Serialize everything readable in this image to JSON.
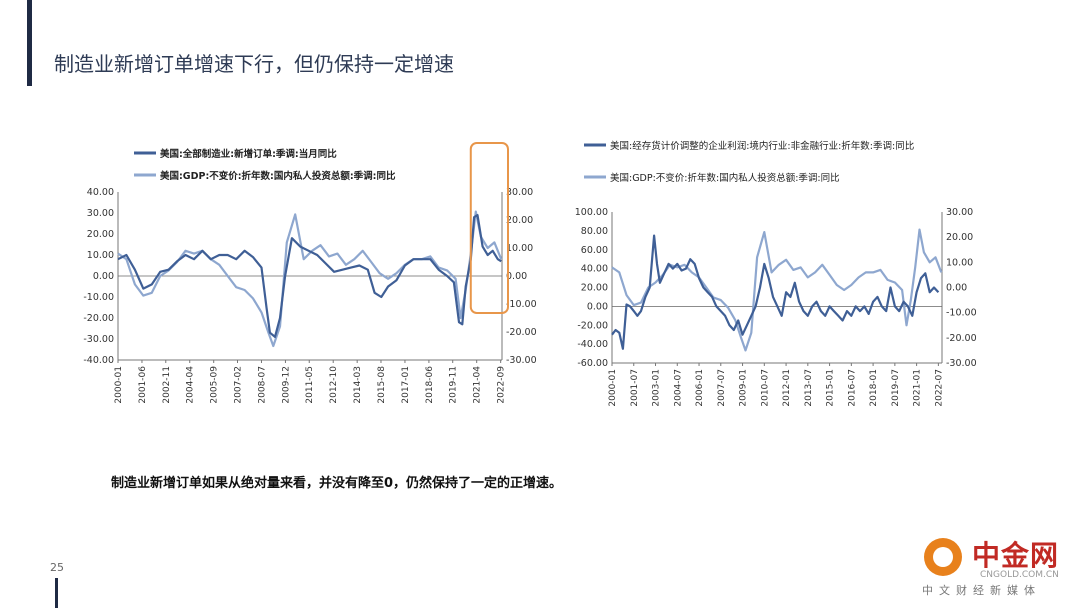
{
  "page": {
    "title": "制造业新增订单增速下行，但仍保持一定增速",
    "caption": "制造业新增订单如果从绝对量来看，并没有降至0，仍然保持了一定的正增速。",
    "page_number": "25"
  },
  "logo": {
    "name": "中金网",
    "url": "CNGOLD.COM.CN",
    "subtitle": "中文财经新媒体"
  },
  "chart_data": [
    {
      "type": "line",
      "series": [
        {
          "name": "美国:全部制造业:新增订单:季调:当月同比",
          "axis": "left",
          "color": "#3f5f96",
          "x": [
            2000.0,
            2000.5,
            2001.0,
            2001.5,
            2002.0,
            2002.5,
            2003.0,
            2003.5,
            2004.0,
            2004.5,
            2005.0,
            2005.5,
            2006.0,
            2006.5,
            2007.0,
            2007.5,
            2008.0,
            2008.5,
            2008.8,
            2009.0,
            2009.3,
            2009.6,
            2009.9,
            2010.3,
            2010.8,
            2011.3,
            2011.8,
            2012.3,
            2012.8,
            2013.3,
            2013.8,
            2014.3,
            2014.8,
            2015.2,
            2015.6,
            2016.0,
            2016.5,
            2017.0,
            2017.5,
            2018.0,
            2018.5,
            2019.0,
            2019.5,
            2019.9,
            2020.2,
            2020.4,
            2020.6,
            2020.9,
            2021.1,
            2021.3,
            2021.6,
            2021.9,
            2022.2,
            2022.5,
            2022.7
          ],
          "y": [
            8,
            10,
            3,
            -6,
            -4,
            2,
            3,
            7,
            10,
            8,
            12,
            8,
            10,
            10,
            8,
            12,
            9,
            4,
            -15,
            -27,
            -29,
            -20,
            0,
            18,
            14,
            12,
            10,
            6,
            2,
            3,
            4,
            5,
            3,
            -8,
            -10,
            -5,
            -2,
            5,
            8,
            8,
            8,
            3,
            0,
            -3,
            -22,
            -23,
            -5,
            8,
            28,
            29,
            14,
            10,
            12,
            8,
            7
          ]
        },
        {
          "name": "美国:GDP:不变价:折年数:国内私人投资总额:季调:同比",
          "axis": "right",
          "color": "#8ea7cf",
          "x": [
            2000.0,
            2000.5,
            2001.0,
            2001.5,
            2002.0,
            2002.5,
            2003.0,
            2003.5,
            2004.0,
            2004.5,
            2005.0,
            2005.5,
            2006.0,
            2006.5,
            2007.0,
            2007.5,
            2008.0,
            2008.5,
            2008.9,
            2009.2,
            2009.6,
            2010.0,
            2010.5,
            2011.0,
            2011.5,
            2012.0,
            2012.5,
            2013.0,
            2013.5,
            2014.0,
            2014.5,
            2015.0,
            2015.5,
            2016.0,
            2016.5,
            2017.0,
            2017.5,
            2018.0,
            2018.5,
            2019.0,
            2019.5,
            2020.0,
            2020.3,
            2020.6,
            2020.9,
            2021.2,
            2021.5,
            2021.9,
            2022.3,
            2022.7
          ],
          "y": [
            8,
            6,
            -3,
            -7,
            -6,
            0,
            2,
            5,
            9,
            8,
            9,
            6,
            4,
            0,
            -4,
            -5,
            -8,
            -13,
            -20,
            -25,
            -18,
            12,
            22,
            6,
            9,
            11,
            7,
            8,
            4,
            6,
            9,
            5,
            1,
            -1,
            1,
            4,
            6,
            6,
            7,
            3,
            2,
            -1,
            -15,
            -5,
            8,
            23,
            14,
            10,
            12,
            6
          ]
        }
      ],
      "ylim_left": [
        -40,
        40
      ],
      "ylim_right": [
        -30,
        30
      ],
      "yticks_left": [
        "40.00",
        "30.00",
        "20.00",
        "10.00",
        "0.00",
        "-10.00",
        "-20.00",
        "-30.00",
        "-40.00"
      ],
      "yticks_right": [
        "30.00",
        "20.00",
        "10.00",
        "0.00",
        "-10.00",
        "-20.00",
        "-30.00"
      ],
      "xlim": [
        2000.0,
        2022.75
      ],
      "x_tick_labels": [
        "2000-01",
        "2001-06",
        "2002-11",
        "2004-04",
        "2005-09",
        "2007-02",
        "2008-07",
        "2009-12",
        "2011-05",
        "2012-10",
        "2014-03",
        "2015-08",
        "2017-01",
        "2018-06",
        "2019-11",
        "2021-04",
        "2022-09"
      ],
      "x_tick_values": [
        2000.0,
        2001.42,
        2002.83,
        2004.25,
        2005.67,
        2007.08,
        2008.5,
        2009.92,
        2011.33,
        2012.75,
        2014.17,
        2015.58,
        2017.0,
        2018.42,
        2019.83,
        2021.25,
        2022.67
      ],
      "highlight": {
        "x_start": 2020.9,
        "x_end": 2022.75,
        "color": "#e8964a"
      },
      "legend_position": "top"
    },
    {
      "type": "line",
      "series": [
        {
          "name": "美国:经存货计价调整的企业利润:境内行业:非金融行业:折年数:季调:同比",
          "axis": "left",
          "color": "#3f5f96",
          "x": [
            2000.0,
            2000.25,
            2000.5,
            2000.75,
            2001.0,
            2001.25,
            2001.5,
            2001.75,
            2002.0,
            2002.3,
            2002.6,
            2002.9,
            2003.1,
            2003.3,
            2003.6,
            2003.9,
            2004.2,
            2004.5,
            2004.8,
            2005.1,
            2005.4,
            2005.7,
            2006.0,
            2006.3,
            2006.6,
            2006.9,
            2007.2,
            2007.5,
            2007.8,
            2008.1,
            2008.4,
            2008.7,
            2009.0,
            2009.3,
            2009.6,
            2009.9,
            2010.2,
            2010.5,
            2010.8,
            2011.1,
            2011.4,
            2011.7,
            2012.0,
            2012.3,
            2012.6,
            2012.9,
            2013.2,
            2013.5,
            2013.8,
            2014.1,
            2014.4,
            2014.7,
            2015.0,
            2015.3,
            2015.6,
            2015.9,
            2016.2,
            2016.5,
            2016.8,
            2017.1,
            2017.4,
            2017.7,
            2018.0,
            2018.3,
            2018.6,
            2018.9,
            2019.2,
            2019.5,
            2019.8,
            2020.1,
            2020.4,
            2020.7,
            2021.0,
            2021.3,
            2021.6,
            2021.9,
            2022.2,
            2022.5
          ],
          "y": [
            -30,
            -25,
            -28,
            -45,
            2,
            0,
            -5,
            -10,
            -5,
            10,
            20,
            75,
            45,
            25,
            35,
            45,
            40,
            45,
            38,
            40,
            50,
            45,
            30,
            20,
            15,
            10,
            0,
            -5,
            -10,
            -20,
            -25,
            -15,
            -30,
            -20,
            -10,
            0,
            20,
            45,
            30,
            10,
            0,
            -10,
            15,
            10,
            25,
            5,
            -5,
            -10,
            0,
            5,
            -5,
            -10,
            0,
            -5,
            -10,
            -15,
            -5,
            -10,
            0,
            -5,
            0,
            -8,
            5,
            10,
            0,
            -5,
            20,
            0,
            -5,
            5,
            0,
            -10,
            15,
            30,
            35,
            15,
            20,
            15
          ]
        },
        {
          "name": "美国:GDP:不变价:折年数:国内私人投资总额:季调:同比",
          "axis": "right",
          "color": "#8ea7cf",
          "x": [
            2000.0,
            2000.5,
            2001.0,
            2001.5,
            2002.0,
            2002.5,
            2003.0,
            2003.5,
            2004.0,
            2004.5,
            2005.0,
            2005.5,
            2006.0,
            2006.5,
            2007.0,
            2007.5,
            2008.0,
            2008.5,
            2008.9,
            2009.2,
            2009.6,
            2010.0,
            2010.5,
            2011.0,
            2011.5,
            2012.0,
            2012.5,
            2013.0,
            2013.5,
            2014.0,
            2014.5,
            2015.0,
            2015.5,
            2016.0,
            2016.5,
            2017.0,
            2017.5,
            2018.0,
            2018.5,
            2019.0,
            2019.5,
            2020.0,
            2020.3,
            2020.6,
            2020.9,
            2021.2,
            2021.5,
            2021.9,
            2022.3,
            2022.7
          ],
          "y": [
            8,
            6,
            -3,
            -7,
            -6,
            0,
            2,
            5,
            9,
            8,
            9,
            6,
            4,
            0,
            -4,
            -5,
            -8,
            -13,
            -20,
            -25,
            -18,
            12,
            22,
            6,
            9,
            11,
            7,
            8,
            4,
            6,
            9,
            5,
            1,
            -1,
            1,
            4,
            6,
            6,
            7,
            3,
            2,
            -1,
            -15,
            -5,
            8,
            23,
            14,
            10,
            12,
            6
          ]
        }
      ],
      "ylim_left": [
        -60,
        100
      ],
      "ylim_right": [
        -30,
        30
      ],
      "yticks_left": [
        "100.00",
        "80.00",
        "60.00",
        "40.00",
        "20.00",
        "0.00",
        "-20.00",
        "-40.00",
        "-60.00"
      ],
      "yticks_right": [
        "30.00",
        "20.00",
        "10.00",
        "0.00",
        "-10.00",
        "-20.00",
        "-30.00"
      ],
      "xlim": [
        2000.0,
        2022.75
      ],
      "x_tick_labels": [
        "2000-01",
        "2001-07",
        "2003-01",
        "2004-07",
        "2006-01",
        "2007-07",
        "2009-01",
        "2010-07",
        "2012-01",
        "2013-07",
        "2015-01",
        "2016-07",
        "2018-01",
        "2019-07",
        "2021-01",
        "2022-07"
      ],
      "x_tick_values": [
        2000.0,
        2001.5,
        2003.0,
        2004.5,
        2006.0,
        2007.5,
        2009.0,
        2010.5,
        2012.0,
        2013.5,
        2015.0,
        2016.5,
        2018.0,
        2019.5,
        2021.0,
        2022.5
      ],
      "legend_position": "top"
    }
  ]
}
